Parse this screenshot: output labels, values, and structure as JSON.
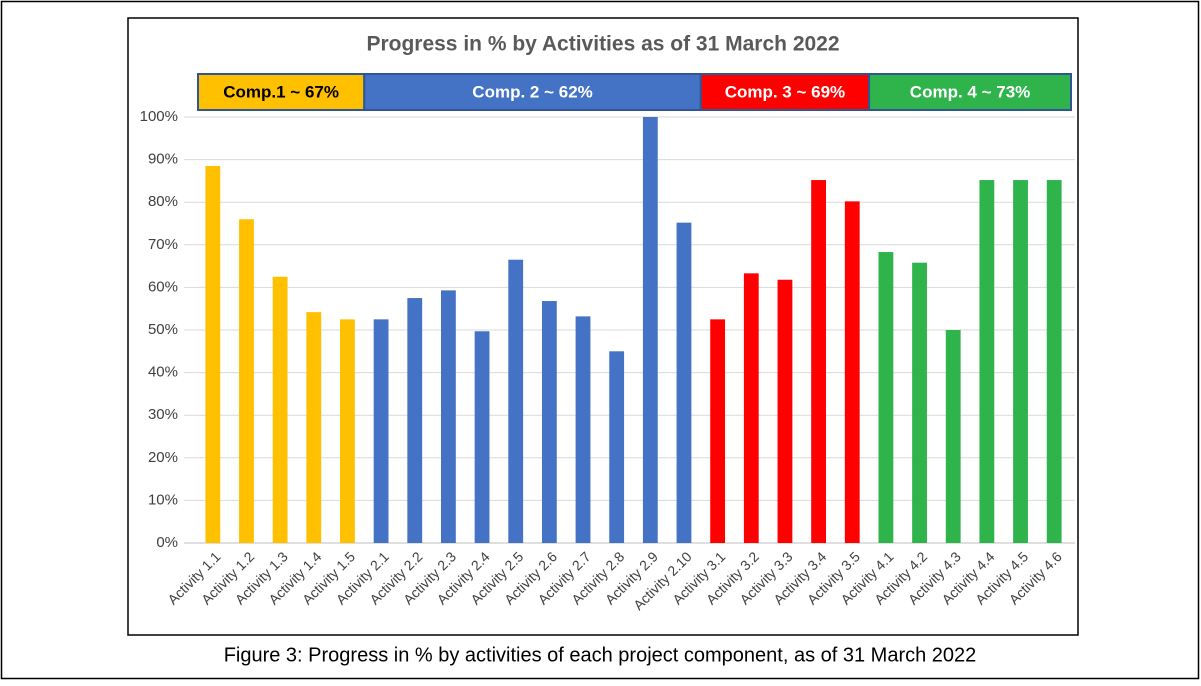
{
  "chart_data": {
    "type": "bar",
    "title": "Progress in % by Activities as of 31 March 2022",
    "caption": "Figure 3: Progress in % by activities of each project component, as of 31 March 2022",
    "categories": [
      "Activity 1.1",
      "Activity 1.2",
      "Activity 1.3",
      "Activity 1.4",
      "Activity 1.5",
      "Activity 2.1",
      "Activity 2.2",
      "Activity 2.3",
      "Activity 2.4",
      "Activity 2.5",
      "Activity 2.6",
      "Activity 2.7",
      "Activity 2.8",
      "Activity 2.9",
      "Activity 2.10",
      "Activity 3.1",
      "Activity 3.2",
      "Activity 3.3",
      "Activity 3.4",
      "Activity 3.5",
      "Activity 4.1",
      "Activity 4.2",
      "Activity 4.3",
      "Activity 4.4",
      "Activity 4.5",
      "Activity 4.6"
    ],
    "series": [
      {
        "name": "Comp.1 ~ 67%",
        "color": "#ffc000",
        "text_color": "#000000",
        "values": [
          88.5,
          76,
          62.5,
          54.2,
          52.5,
          null,
          null,
          null,
          null,
          null,
          null,
          null,
          null,
          null,
          null,
          null,
          null,
          null,
          null,
          null,
          null,
          null,
          null,
          null,
          null,
          null
        ]
      },
      {
        "name": "Comp. 2 ~ 62%",
        "color": "#4472c4",
        "text_color": "#ffffff",
        "values": [
          null,
          null,
          null,
          null,
          null,
          52.5,
          57.5,
          59.3,
          49.7,
          66.5,
          56.8,
          53.2,
          45,
          100,
          75.2,
          null,
          null,
          null,
          null,
          null,
          null,
          null,
          null,
          null,
          null,
          null
        ]
      },
      {
        "name": "Comp. 3 ~ 69%",
        "color": "#ff0000",
        "text_color": "#ffffff",
        "values": [
          null,
          null,
          null,
          null,
          null,
          null,
          null,
          null,
          null,
          null,
          null,
          null,
          null,
          null,
          null,
          52.5,
          63.3,
          61.8,
          85.2,
          80.2,
          null,
          null,
          null,
          null,
          null,
          null
        ]
      },
      {
        "name": "Comp. 4 ~ 73%",
        "color": "#2fb34b",
        "text_color": "#ffffff",
        "values": [
          null,
          null,
          null,
          null,
          null,
          null,
          null,
          null,
          null,
          null,
          null,
          null,
          null,
          null,
          null,
          null,
          null,
          null,
          null,
          null,
          68.3,
          65.8,
          50,
          85.2,
          85.2,
          85.2
        ]
      }
    ],
    "ylim": [
      0,
      100
    ],
    "yticks": [
      {
        "value": 0,
        "label": "0%"
      },
      {
        "value": 10,
        "label": "10%"
      },
      {
        "value": 20,
        "label": "20%"
      },
      {
        "value": 30,
        "label": "30%"
      },
      {
        "value": 40,
        "label": "40%"
      },
      {
        "value": 50,
        "label": "50%"
      },
      {
        "value": 60,
        "label": "60%"
      },
      {
        "value": 70,
        "label": "70%"
      },
      {
        "value": 80,
        "label": "80%"
      },
      {
        "value": 90,
        "label": "90%"
      },
      {
        "value": 100,
        "label": "100%"
      }
    ],
    "grid": true
  }
}
